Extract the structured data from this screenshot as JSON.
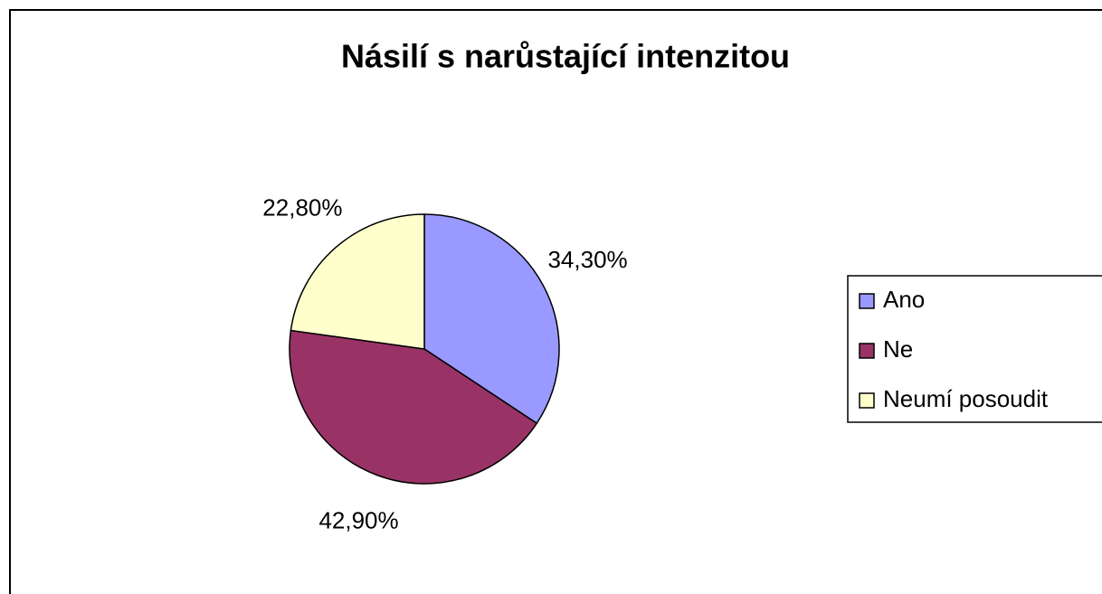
{
  "chart_data": {
    "type": "pie",
    "title": "Násilí s narůstající intenzitou",
    "categories": [
      "Ano",
      "Ne",
      "Neumí posoudit"
    ],
    "values": [
      34.3,
      42.9,
      22.8
    ],
    "value_labels": [
      "34,30%",
      "42,90%",
      "22,80%"
    ],
    "colors": [
      "#9999ff",
      "#993366",
      "#ffffcc"
    ],
    "legend": "right"
  }
}
